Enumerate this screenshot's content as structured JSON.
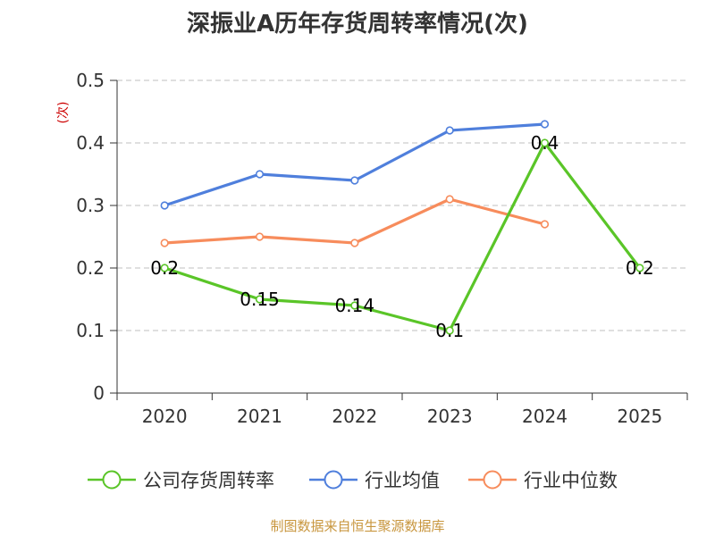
{
  "chart_data": {
    "type": "line",
    "title": "深振业A历年存货周转率情况(次)",
    "ylabel": "(次)",
    "xlabel": "",
    "categories": [
      "2020",
      "2021",
      "2022",
      "2023",
      "2024",
      "2025"
    ],
    "ylim": [
      0,
      0.5
    ],
    "yticks": [
      "0",
      "0.1",
      "0.2",
      "0.3",
      "0.4",
      "0.5"
    ],
    "grid": true,
    "legend_position": "bottom",
    "series": [
      {
        "name": "公司存货周转率",
        "color": "#5ac528",
        "values": [
          0.2,
          0.15,
          0.14,
          0.1,
          0.4,
          0.2
        ],
        "labels": [
          "0.2",
          "0.15",
          "0.14",
          "0.1",
          "0.4",
          "0.2"
        ]
      },
      {
        "name": "行业均值",
        "color": "#4f7fdc",
        "values": [
          0.3,
          0.35,
          0.34,
          0.42,
          0.43,
          null
        ]
      },
      {
        "name": "行业中位数",
        "color": "#f78c5c",
        "values": [
          0.24,
          0.25,
          0.24,
          0.31,
          0.27,
          null
        ]
      }
    ]
  },
  "footer": "制图数据来自恒生聚源数据库"
}
